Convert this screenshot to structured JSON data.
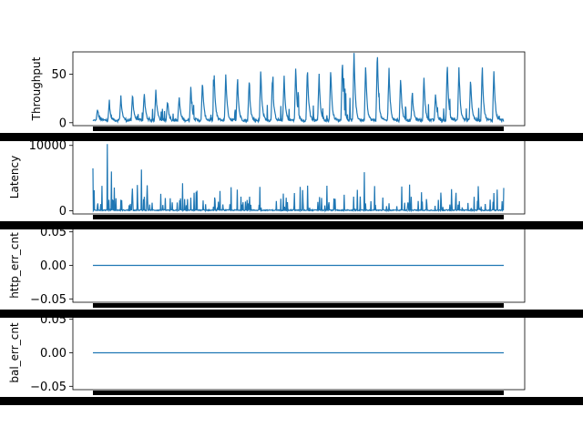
{
  "chart_data": [
    {
      "type": "line",
      "ylabel": "Throughput",
      "ylim": [
        -3,
        73
      ],
      "yticks": [
        0,
        50
      ],
      "ytick_labels": [
        "0",
        "50"
      ],
      "x_count": 1000,
      "color": "#1f77b4",
      "pattern": "periodic-spikes",
      "peaks_approx": [
        12,
        18,
        25,
        28,
        30,
        32,
        22,
        25,
        35,
        42,
        48,
        50,
        44,
        40,
        53,
        47,
        45,
        56,
        56,
        48,
        55,
        65,
        72,
        60,
        72,
        54,
        45,
        30,
        45,
        28,
        60,
        55,
        45,
        58,
        52
      ]
    },
    {
      "type": "line",
      "ylabel": "Latency",
      "ylim": [
        -500,
        10800
      ],
      "yticks": [
        0,
        10000
      ],
      "ytick_labels": [
        "0",
        "10000"
      ],
      "x_count": 1000,
      "color": "#1f77b4",
      "pattern": "sparse-spikes",
      "max_approx": 10200
    },
    {
      "type": "line",
      "ylabel": "http_err_cnt",
      "ylim": [
        -0.055,
        0.055
      ],
      "yticks": [
        -0.05,
        0.0,
        0.05
      ],
      "ytick_labels": [
        "−0.05",
        "0.00",
        "0.05"
      ],
      "x_count": 1000,
      "constant_value": 0.0,
      "color": "#1f77b4"
    },
    {
      "type": "line",
      "ylabel": "bal_err_cnt",
      "ylim": [
        -0.055,
        0.055
      ],
      "yticks": [
        -0.05,
        0.0,
        0.05
      ],
      "ytick_labels": [
        "−0.05",
        "0.00",
        "0.05"
      ],
      "x_count": 1000,
      "constant_value": 0.0,
      "color": "#1f77b4"
    }
  ]
}
